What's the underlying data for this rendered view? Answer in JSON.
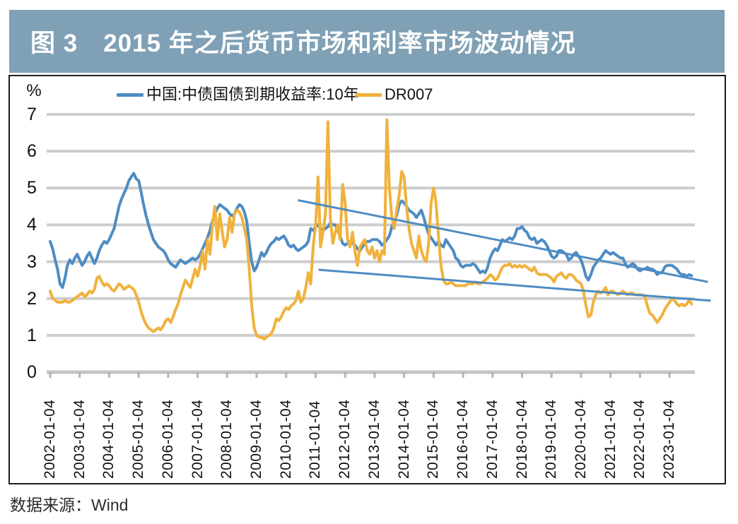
{
  "title": "图 3　2015 年之后货币市场和利率市场波动情况",
  "source": "数据来源：Wind",
  "colors": {
    "title_bar": "#7fa0b5",
    "title_text": "#ffffff",
    "series_blue": "#4e8cc3",
    "series_yellow": "#f0b23d",
    "trendline": "#4e8cc3",
    "gridline": "#cdcdcd",
    "axis_line": "#c4c4c4"
  },
  "y_axis": {
    "unit": "%",
    "ticks": [
      "7",
      "6",
      "5",
      "4",
      "3",
      "2",
      "1",
      "0"
    ]
  },
  "x_axis": {
    "labels": [
      "2002-01-04",
      "2003-01-04",
      "2004-01-04",
      "2005-01-04",
      "2006-01-04",
      "2007-01-04",
      "2008-01-04",
      "2009-01-04",
      "2010-01-04",
      "2011-01-04",
      "2012-01-04",
      "2013-01-04",
      "2014-01-04",
      "2015-01-04",
      "2016-01-04",
      "2017-01-04",
      "2018-01-04",
      "2019-01-04",
      "2020-01-04",
      "2021-01-04",
      "2022-01-04",
      "2023-01-04"
    ]
  },
  "legend": [
    {
      "label": "中国:中债国债到期收益率:10年",
      "color": "#4e8cc3"
    },
    {
      "label": "DR007",
      "color": "#f0b23d"
    }
  ],
  "chart_data": {
    "type": "line",
    "title": "图 3　2015 年之后货币市场和利率市场波动情况",
    "xlabel": "",
    "ylabel": "%",
    "ylim": [
      0,
      7
    ],
    "xlim": [
      2002.0,
      2024.0
    ],
    "grid": "horizontal",
    "legend_position": "top",
    "x_start": 2002.0,
    "x_step_years": 0.0833333,
    "series": [
      {
        "name": "中国:中债国债到期收益率:10年",
        "color": "#4e8cc3",
        "values": [
          3.55,
          3.35,
          3.05,
          2.8,
          2.4,
          2.3,
          2.55,
          2.9,
          3.05,
          2.95,
          3.1,
          3.2,
          3.05,
          2.9,
          3.0,
          3.15,
          3.25,
          3.1,
          2.95,
          3.1,
          3.3,
          3.45,
          3.55,
          3.5,
          3.6,
          3.75,
          3.9,
          4.2,
          4.5,
          4.7,
          4.85,
          5.0,
          5.2,
          5.3,
          5.4,
          5.25,
          5.2,
          4.9,
          4.55,
          4.25,
          4.0,
          3.8,
          3.6,
          3.5,
          3.4,
          3.35,
          3.3,
          3.2,
          3.05,
          2.95,
          2.9,
          2.85,
          2.95,
          3.05,
          3.0,
          2.95,
          3.0,
          3.05,
          3.1,
          3.05,
          3.1,
          3.2,
          3.35,
          3.5,
          3.65,
          3.85,
          4.1,
          4.3,
          4.45,
          4.55,
          4.5,
          4.45,
          4.4,
          4.3,
          4.25,
          4.3,
          4.45,
          4.55,
          4.5,
          4.35,
          4.1,
          3.5,
          3.0,
          2.75,
          2.85,
          3.05,
          3.25,
          3.15,
          3.25,
          3.4,
          3.5,
          3.55,
          3.65,
          3.6,
          3.65,
          3.7,
          3.6,
          3.45,
          3.4,
          3.45,
          3.35,
          3.3,
          3.35,
          3.4,
          3.45,
          3.55,
          3.9,
          3.85,
          3.95,
          4.0,
          3.9,
          3.85,
          3.9,
          3.95,
          4.05,
          4.0,
          4.0,
          3.85,
          3.7,
          3.5,
          3.45,
          3.5,
          3.55,
          3.5,
          3.45,
          3.35,
          3.3,
          3.4,
          3.5,
          3.55,
          3.55,
          3.6,
          3.6,
          3.6,
          3.55,
          3.45,
          3.5,
          3.6,
          3.7,
          3.95,
          4.1,
          4.25,
          4.55,
          4.65,
          4.6,
          4.5,
          4.4,
          4.35,
          4.3,
          4.2,
          4.3,
          4.4,
          4.2,
          3.95,
          3.75,
          3.65,
          3.55,
          3.45,
          3.55,
          3.45,
          3.4,
          3.6,
          3.5,
          3.4,
          3.3,
          3.1,
          3.05,
          2.9,
          2.85,
          2.9,
          2.9,
          2.9,
          2.95,
          2.9,
          2.8,
          2.7,
          2.75,
          2.7,
          2.85,
          3.1,
          3.25,
          3.35,
          3.3,
          3.45,
          3.6,
          3.55,
          3.6,
          3.65,
          3.6,
          3.7,
          3.9,
          3.9,
          3.95,
          3.85,
          3.8,
          3.65,
          3.6,
          3.65,
          3.5,
          3.55,
          3.6,
          3.55,
          3.45,
          3.3,
          3.15,
          3.1,
          3.15,
          3.3,
          3.3,
          3.25,
          3.2,
          3.05,
          3.1,
          3.2,
          3.25,
          3.15,
          3.05,
          2.85,
          2.6,
          2.5,
          2.65,
          2.85,
          2.95,
          3.05,
          3.1,
          3.2,
          3.3,
          3.25,
          3.2,
          3.25,
          3.2,
          3.15,
          3.1,
          3.1,
          2.95,
          2.85,
          2.9,
          2.95,
          2.9,
          2.8,
          2.75,
          2.8,
          2.8,
          2.85,
          2.8,
          2.8,
          2.75,
          2.65,
          2.7,
          2.7,
          2.85,
          2.9,
          2.9,
          2.9,
          2.85,
          2.8,
          2.7,
          2.65,
          2.65,
          2.6,
          2.65,
          2.62
        ]
      },
      {
        "name": "DR007",
        "color": "#f0b23d",
        "values": [
          2.2,
          2.0,
          1.95,
          1.9,
          1.9,
          1.9,
          1.95,
          1.9,
          1.9,
          1.95,
          2.0,
          2.05,
          2.1,
          2.15,
          2.05,
          2.1,
          2.2,
          2.15,
          2.25,
          2.55,
          2.6,
          2.45,
          2.35,
          2.4,
          2.35,
          2.25,
          2.2,
          2.3,
          2.4,
          2.35,
          2.25,
          2.3,
          2.35,
          2.3,
          2.25,
          2.1,
          1.9,
          1.65,
          1.45,
          1.3,
          1.2,
          1.15,
          1.1,
          1.15,
          1.2,
          1.15,
          1.25,
          1.4,
          1.45,
          1.35,
          1.5,
          1.7,
          1.85,
          2.1,
          2.3,
          2.5,
          2.4,
          2.3,
          2.55,
          2.8,
          2.6,
          2.9,
          3.3,
          2.8,
          3.6,
          3.2,
          4.0,
          4.5,
          3.6,
          4.3,
          3.8,
          3.4,
          3.6,
          4.2,
          3.8,
          4.3,
          4.4,
          4.35,
          4.2,
          3.9,
          3.6,
          2.8,
          1.8,
          1.2,
          1.0,
          0.95,
          0.95,
          0.9,
          0.95,
          1.0,
          1.05,
          1.2,
          1.45,
          1.4,
          1.5,
          1.65,
          1.75,
          1.7,
          1.8,
          1.85,
          1.95,
          2.2,
          1.9,
          2.0,
          2.3,
          2.7,
          2.4,
          3.4,
          4.0,
          5.3,
          3.4,
          3.8,
          4.3,
          6.8,
          4.2,
          3.5,
          3.8,
          4.0,
          3.6,
          5.1,
          4.6,
          3.6,
          3.4,
          3.8,
          3.3,
          2.9,
          3.4,
          3.5,
          3.6,
          3.3,
          3.2,
          3.4,
          3.1,
          3.3,
          3.0,
          3.3,
          3.2,
          6.85,
          5.0,
          4.2,
          3.9,
          4.4,
          4.8,
          5.45,
          5.3,
          4.5,
          3.9,
          3.5,
          3.3,
          3.1,
          3.7,
          3.3,
          3.1,
          3.0,
          3.5,
          4.6,
          5.0,
          4.6,
          3.7,
          2.9,
          2.5,
          2.4,
          2.4,
          2.45,
          2.4,
          2.35,
          2.35,
          2.35,
          2.35,
          2.35,
          2.4,
          2.4,
          2.4,
          2.45,
          2.4,
          2.4,
          2.45,
          2.5,
          2.55,
          2.65,
          2.6,
          2.5,
          2.55,
          2.7,
          2.85,
          2.9,
          2.9,
          2.95,
          2.85,
          2.9,
          2.85,
          2.9,
          2.85,
          2.9,
          2.85,
          2.8,
          2.75,
          2.85,
          2.7,
          2.65,
          2.65,
          2.65,
          2.65,
          2.6,
          2.55,
          2.45,
          2.6,
          2.65,
          2.7,
          2.6,
          2.55,
          2.65,
          2.65,
          2.6,
          2.5,
          2.45,
          2.4,
          2.2,
          1.8,
          1.5,
          1.55,
          1.9,
          2.1,
          2.2,
          2.15,
          2.2,
          2.3,
          2.1,
          2.2,
          2.2,
          2.15,
          2.1,
          2.15,
          2.2,
          2.15,
          2.1,
          2.15,
          2.15,
          2.1,
          2.1,
          2.1,
          2.1,
          2.05,
          1.8,
          1.6,
          1.55,
          1.45,
          1.35,
          1.45,
          1.55,
          1.7,
          1.8,
          1.9,
          2.0,
          1.95,
          1.85,
          1.8,
          1.85,
          1.8,
          1.85,
          1.95,
          1.85
        ]
      }
    ],
    "trendlines": [
      {
        "x1": 2010.4,
        "y1": 4.67,
        "x2": 2024.3,
        "y2": 2.45
      },
      {
        "x1": 2011.1,
        "y1": 2.78,
        "x2": 2024.4,
        "y2": 1.94
      }
    ]
  }
}
